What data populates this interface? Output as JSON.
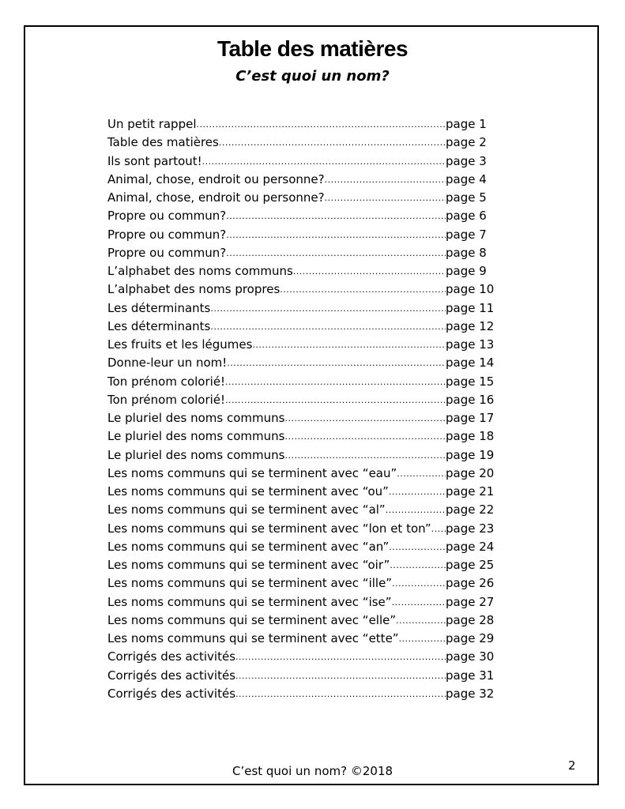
{
  "header": {
    "title": "Table des matières",
    "subtitle": "C’est quoi un nom?"
  },
  "toc": [
    {
      "label": "Un petit rappel",
      "page": "page 1"
    },
    {
      "label": "Table des matières",
      "page": "page 2"
    },
    {
      "label": "Ils sont partout!",
      "page": "page 3"
    },
    {
      "label": "Animal, chose, endroit ou personne?",
      "page": "page 4"
    },
    {
      "label": "Animal, chose, endroit ou personne?",
      "page": "page 5"
    },
    {
      "label": "Propre ou commun?",
      "page": "page 6"
    },
    {
      "label": "Propre ou commun?",
      "page": "page 7"
    },
    {
      "label": "Propre ou commun?",
      "page": "page 8"
    },
    {
      "label": "L’alphabet des noms communs",
      "page": "page 9"
    },
    {
      "label": "L’alphabet des noms propres",
      "page": "page 10"
    },
    {
      "label": "Les déterminants",
      "page": "page 11"
    },
    {
      "label": "Les déterminants",
      "page": "page 12"
    },
    {
      "label": "Les fruits et les légumes",
      "page": "page 13"
    },
    {
      "label": "Donne-leur un nom!",
      "page": "page 14"
    },
    {
      "label": "Ton prénom colorié!",
      "page": "page 15"
    },
    {
      "label": "Ton prénom colorié!",
      "page": "page 16"
    },
    {
      "label": "Le pluriel des noms communs",
      "page": "page 17"
    },
    {
      "label": "Le pluriel des noms communs",
      "page": "page 18"
    },
    {
      "label": "Le pluriel des noms communs",
      "page": "page 19"
    },
    {
      "label": "Les noms communs qui se terminent avec “eau”",
      "page": "page 20"
    },
    {
      "label": "Les noms communs qui se terminent avec “ou”",
      "page": "page 21"
    },
    {
      "label": "Les noms communs qui se terminent avec “al”",
      "page": "page 22"
    },
    {
      "label": "Les noms communs qui se terminent avec “lon et ton”",
      "page": "page 23"
    },
    {
      "label": "Les noms communs qui se terminent avec “an”",
      "page": "page 24"
    },
    {
      "label": "Les noms communs qui se terminent avec “oir”",
      "page": "page 25"
    },
    {
      "label": "Les noms communs qui se terminent avec “ille”",
      "page": "page 26"
    },
    {
      "label": "Les noms communs qui se terminent avec “ise”",
      "page": "page 27"
    },
    {
      "label": "Les noms communs qui se terminent avec “elle”",
      "page": "page 28"
    },
    {
      "label": "Les noms communs qui se terminent avec “ette”",
      "page": "page 29"
    },
    {
      "label": "Corrigés des activités",
      "page": "page 30"
    },
    {
      "label": "Corrigés des activités",
      "page": "page 31"
    },
    {
      "label": "Corrigés des activités",
      "page": "page 32"
    }
  ],
  "footer": {
    "text": "C’est quoi un nom?  ©2018",
    "page_number": "2"
  }
}
